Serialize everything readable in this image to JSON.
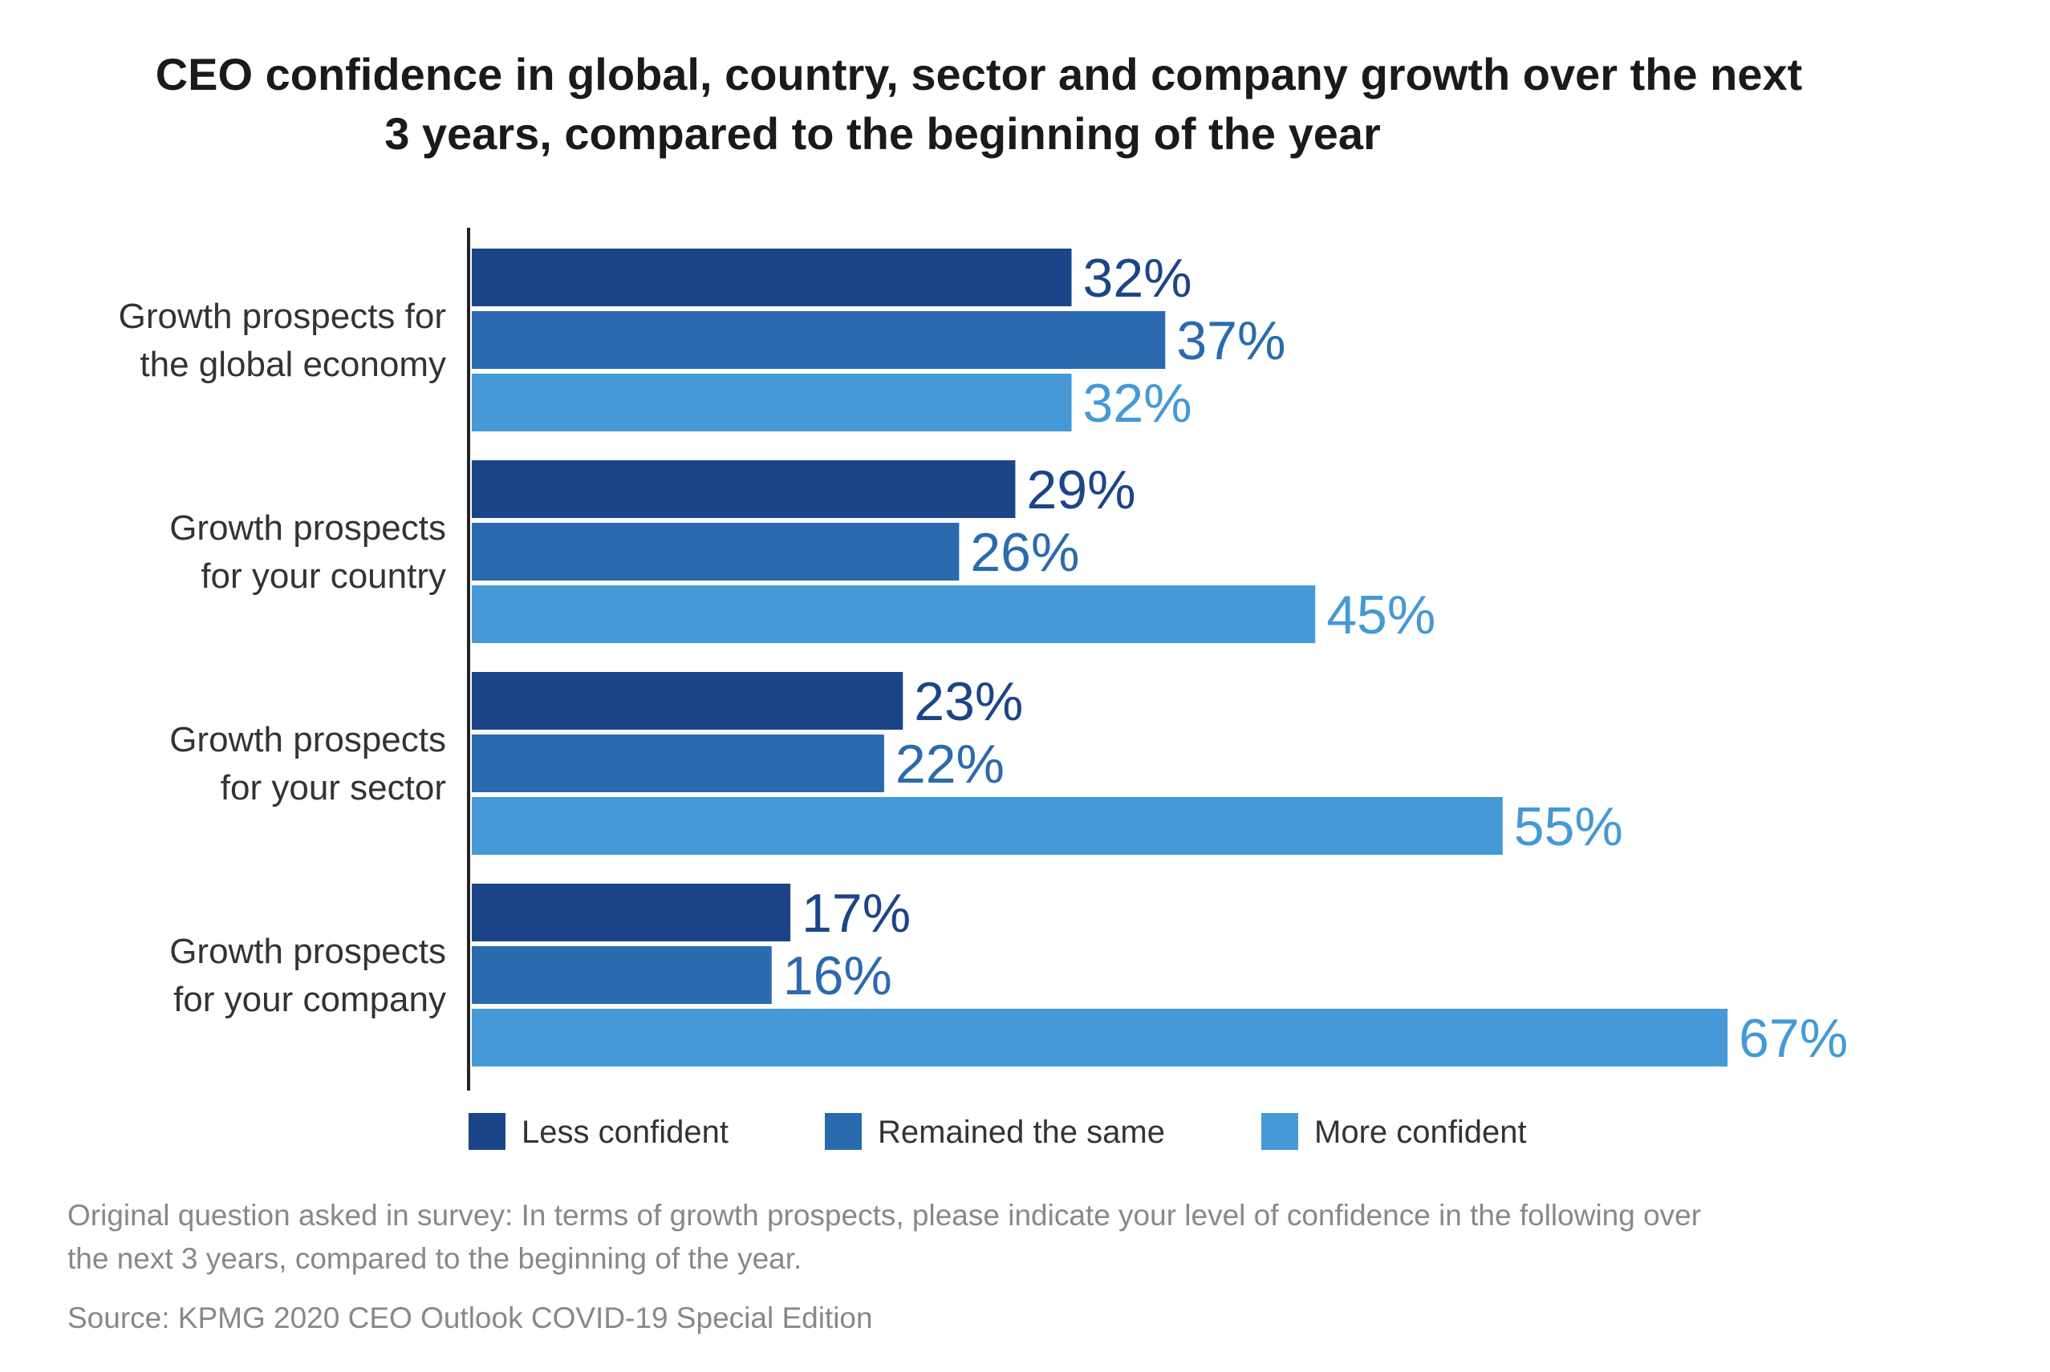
{
  "title_lines": [
    "CEO confidence in global, country, sector and company growth over the next",
    "3 years, compared to the beginning of the year"
  ],
  "chart_data": {
    "type": "bar",
    "orientation": "horizontal",
    "categories": [
      [
        "Growth prospects for",
        "the global economy"
      ],
      [
        "Growth prospects",
        "for your country"
      ],
      [
        "Growth prospects",
        "for your sector"
      ],
      [
        "Growth prospects",
        "for your company"
      ]
    ],
    "series": [
      {
        "name": "Less confident",
        "color": "#1c4589",
        "values": [
          32,
          29,
          23,
          17
        ]
      },
      {
        "name": "Remained the same",
        "color": "#2b6aae",
        "values": [
          37,
          26,
          22,
          16
        ]
      },
      {
        "name": "More confident",
        "color": "#4499d6",
        "values": [
          32,
          45,
          55,
          67
        ]
      }
    ],
    "value_suffix": "%",
    "legend_position": "bottom-left",
    "grid": false
  },
  "notes": [
    "Original question asked in survey: In terms of growth prospects, please indicate your level of confidence in the following over",
    "the next 3 years, compared to the beginning of the year."
  ],
  "source": "Source: KPMG 2020 CEO Outlook COVID-19 Special Edition"
}
